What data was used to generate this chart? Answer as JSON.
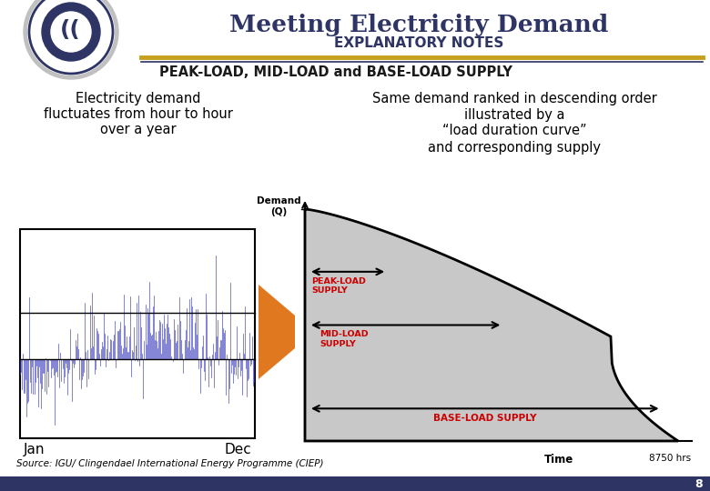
{
  "title": "Meeting Electricity Demand",
  "subtitle": "EXPLANATORY NOTES",
  "section_title": "PEAK-LOAD, MID-LOAD and BASE-LOAD SUPPLY",
  "left_text_line1": "Electricity demand",
  "left_text_line2": "fluctuates from hour to hour",
  "left_text_line3": "over a year",
  "right_text_line1": "Same demand ranked in descending order",
  "right_text_line2": "illustrated by a",
  "right_text_line3": "“load duration curve”",
  "right_text_line4": "and corresponding supply",
  "demand_label": "Demand\n(Q)",
  "time_label": "Time",
  "hrs_label": "8750 hrs",
  "peak_label": "PEAK-LOAD\nSUPPLY",
  "mid_label": "MID-LOAD\nSUPPLY",
  "base_label": "BASE-LOAD SUPPLY",
  "source_text": "Source: IGU/ Clingendael International Energy Programme (CIEP)",
  "page_number": "8",
  "title_color": "#2E3464",
  "subtitle_color": "#2E3464",
  "section_title_color": "#1a1a1a",
  "separator_color_gold": "#C8A020",
  "separator_color_dark": "#2E3464",
  "curve_fill_color": "#C8C8C8",
  "curve_line_color": "#000000",
  "arrow_color": "#000000",
  "label_color": "#CC0000",
  "background_color": "#FFFFFF",
  "bottom_bar_color": "#2E3464",
  "left_chart_line_color": "#3333BB",
  "orange_color": "#E07820"
}
